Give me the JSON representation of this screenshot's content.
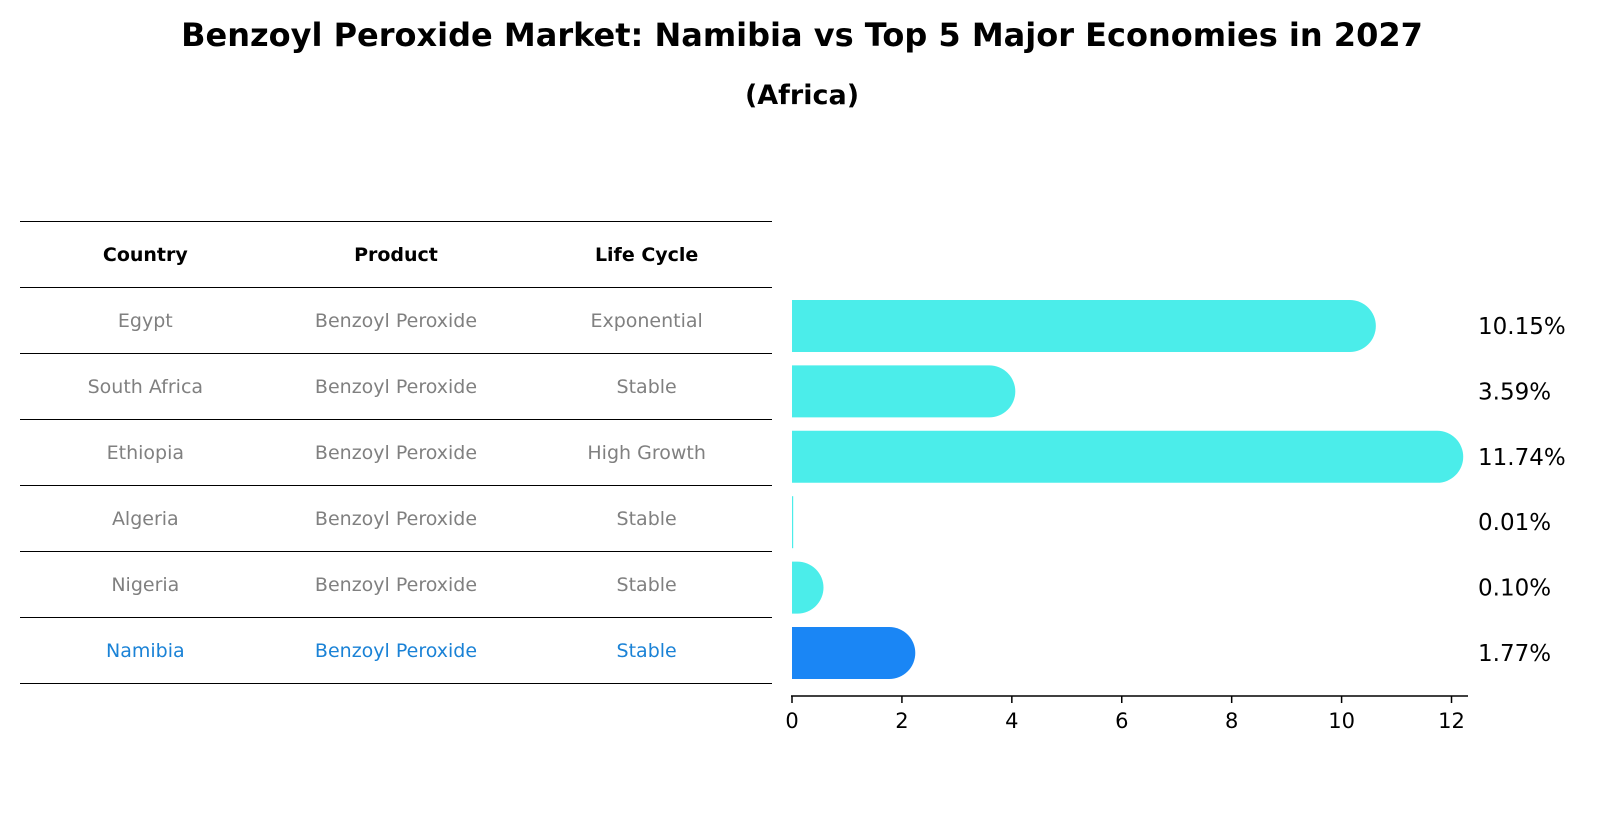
{
  "title": "Benzoyl Peroxide Market: Namibia vs Top 5 Major Economies in 2027",
  "subtitle": "(Africa)",
  "table": {
    "headers": [
      "Country",
      "Product",
      "Life Cycle"
    ],
    "rows": [
      {
        "country": "Egypt",
        "product": "Benzoyl Peroxide",
        "life_cycle": "Exponential"
      },
      {
        "country": "South Africa",
        "product": "Benzoyl Peroxide",
        "life_cycle": "Stable"
      },
      {
        "country": "Ethiopia",
        "product": "Benzoyl Peroxide",
        "life_cycle": "High Growth"
      },
      {
        "country": "Algeria",
        "product": "Benzoyl Peroxide",
        "life_cycle": "Stable"
      },
      {
        "country": "Nigeria",
        "product": "Benzoyl Peroxide",
        "life_cycle": "Stable"
      },
      {
        "country": "Namibia",
        "product": "Benzoyl Peroxide",
        "life_cycle": "Stable"
      }
    ]
  },
  "chart_data": {
    "type": "bar",
    "orientation": "horizontal",
    "categories": [
      "Egypt",
      "South Africa",
      "Ethiopia",
      "Algeria",
      "Nigeria",
      "Namibia"
    ],
    "values": [
      10.15,
      3.59,
      11.74,
      0.01,
      0.1,
      1.77
    ],
    "value_labels": [
      "10.15%",
      "3.59%",
      "11.74%",
      "0.01%",
      "0.10%",
      "1.77%"
    ],
    "highlight": "Namibia",
    "xlim": [
      0,
      12.3
    ],
    "xticks": [
      0,
      2,
      4,
      6,
      8,
      10,
      12
    ],
    "colors": {
      "default": "#4bedea",
      "highlight": "#1a86f5"
    },
    "grid": false
  }
}
